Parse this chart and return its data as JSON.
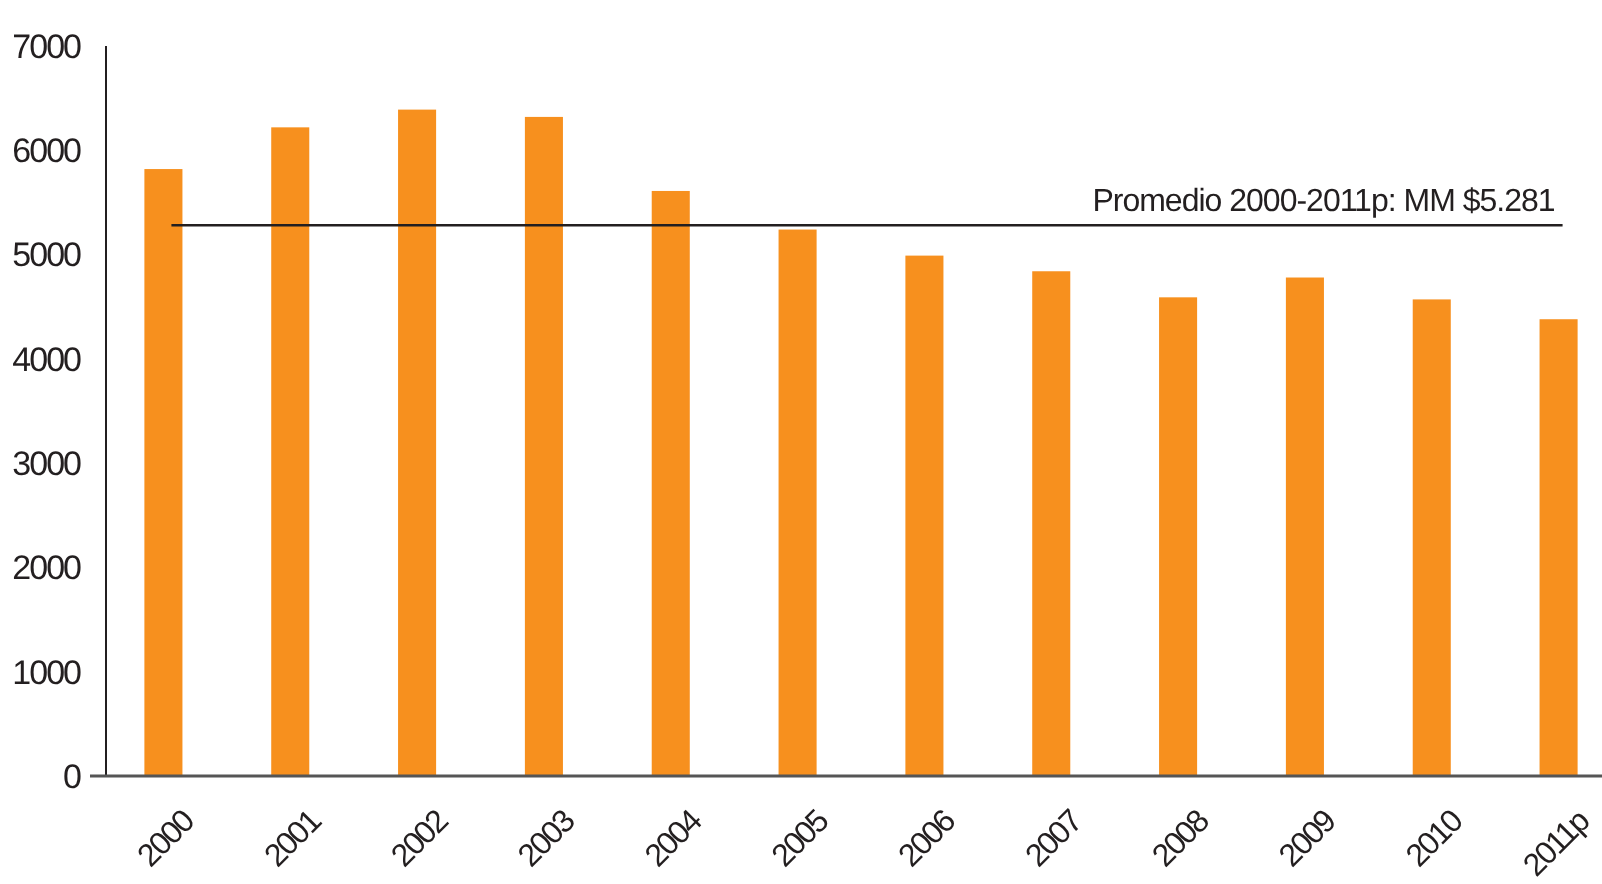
{
  "chart_data": {
    "type": "bar",
    "categories": [
      "2000",
      "2001",
      "2002",
      "2003",
      "2004",
      "2005",
      "2006",
      "2007",
      "2008",
      "2009",
      "2010",
      "2011p"
    ],
    "values": [
      5820,
      6220,
      6390,
      6320,
      5610,
      5240,
      4990,
      4840,
      4590,
      4780,
      4570,
      4380
    ],
    "color": "#f7901e",
    "ylim": [
      0,
      7000
    ],
    "yticks": [
      0,
      1000,
      2000,
      3000,
      4000,
      5000,
      6000,
      7000
    ],
    "grid": false,
    "ref_lines": [
      {
        "axis": "y",
        "value": 5281,
        "label": "Promedio 2000-2011p: MM $5.281",
        "color": "#231f20"
      }
    ]
  }
}
